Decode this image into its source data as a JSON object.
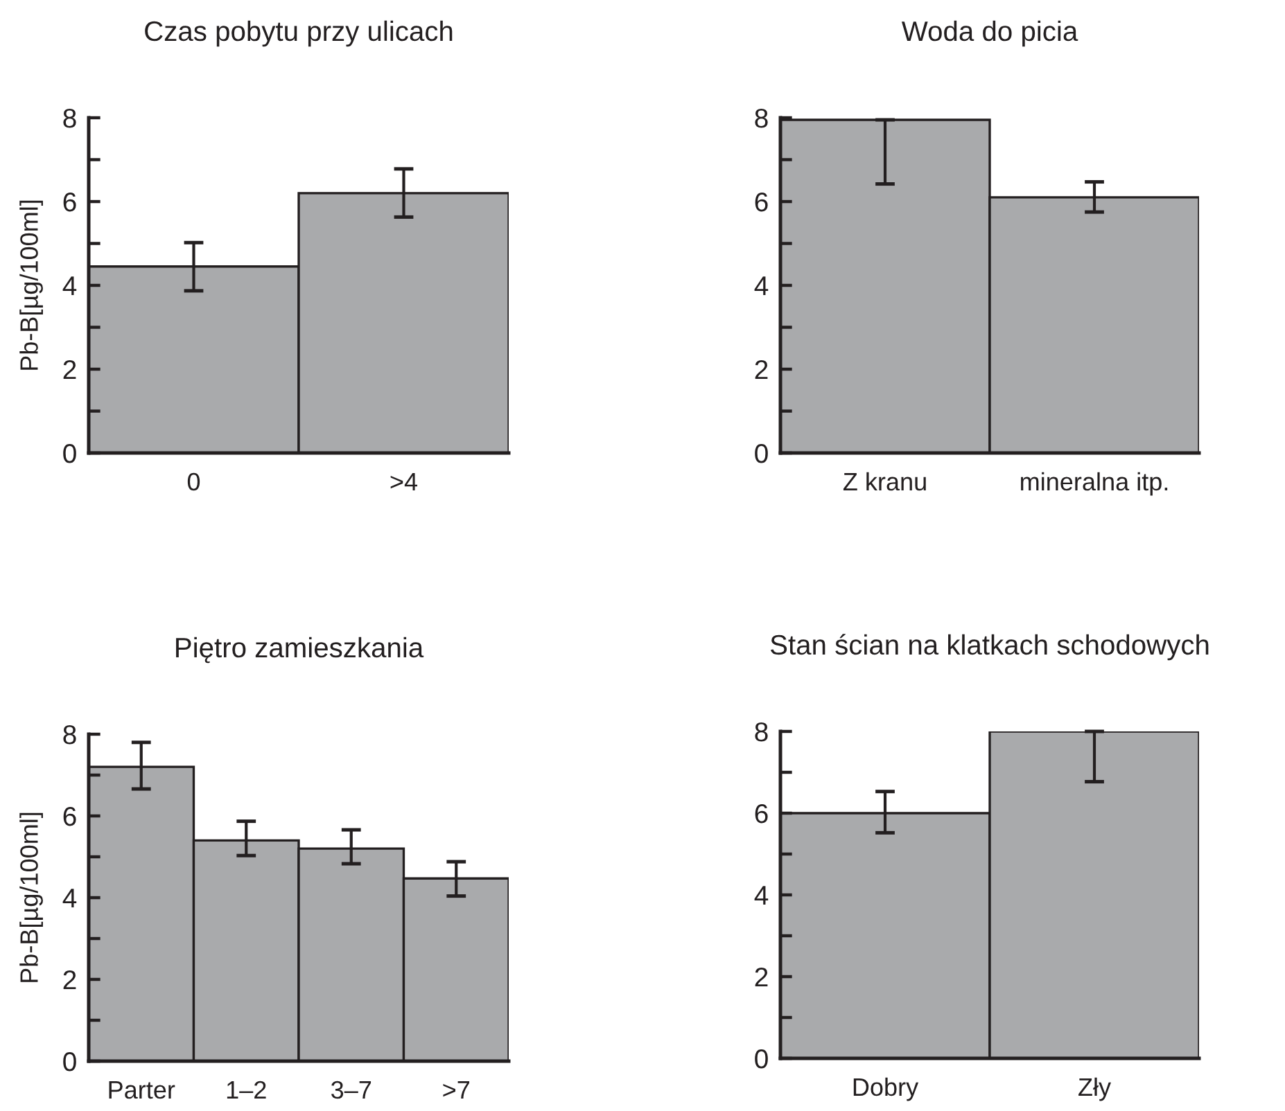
{
  "chart_data": [
    {
      "type": "bar",
      "title": "Czas pobytu przy ulicach",
      "ylabel": "Pb-B[µg/100ml]",
      "categories": [
        "0",
        ">4"
      ],
      "values": [
        4.45,
        6.2
      ],
      "errors": [
        [
          3.87,
          5.02
        ],
        [
          5.63,
          6.78
        ]
      ],
      "color": "#a9aaac",
      "ylim": [
        0,
        8
      ],
      "yticks": [
        0,
        {
          "value": 1,
          "label": null
        },
        2,
        {
          "value": 3,
          "label": null
        },
        4,
        {
          "value": 5,
          "label": null
        },
        6,
        {
          "value": 7,
          "label": null
        },
        8
      ]
    },
    {
      "type": "bar",
      "title": "Woda do picia",
      "categories": [
        "Z kranu",
        "mineralna itp."
      ],
      "values": [
        7.95,
        6.1
      ],
      "errors": [
        [
          6.42,
          7.95
        ],
        [
          5.75,
          6.47
        ]
      ],
      "color": "#a9aaac",
      "ylim": [
        0,
        8
      ],
      "yticks": [
        0,
        {
          "value": 1,
          "label": null
        },
        2,
        {
          "value": 3,
          "label": null
        },
        4,
        {
          "value": 5,
          "label": null
        },
        6,
        {
          "value": 7,
          "label": null
        },
        8
      ]
    },
    {
      "type": "bar",
      "title": "Piętro zamieszkania",
      "ylabel": "Pb-B[µg/100ml]",
      "categories": [
        "Parter",
        "1–2",
        "3–7",
        ">7"
      ],
      "values": [
        7.2,
        5.4,
        5.2,
        4.47
      ],
      "errors": [
        [
          6.66,
          7.8
        ],
        [
          5.03,
          5.87
        ],
        [
          4.83,
          5.66
        ],
        [
          4.04,
          4.88
        ]
      ],
      "color": "#a9aaac",
      "ylim": [
        0,
        8
      ],
      "yticks": [
        0,
        {
          "value": 1,
          "label": null
        },
        2,
        {
          "value": 3,
          "label": null
        },
        4,
        {
          "value": 5,
          "label": null
        },
        6,
        {
          "value": 7,
          "label": null
        },
        8
      ]
    },
    {
      "type": "bar",
      "title": "Stan ścian na klatkach schodowych",
      "categories": [
        "Dobry",
        "Zły"
      ],
      "values": [
        6.0,
        8.0
      ],
      "errors": [
        [
          5.52,
          6.53
        ],
        [
          6.77,
          8.0
        ]
      ],
      "color": "#a9aaac",
      "ylim": [
        0,
        8
      ],
      "yticks": [
        0,
        {
          "value": 1,
          "label": null
        },
        2,
        {
          "value": 3,
          "label": null
        },
        4,
        {
          "value": 5,
          "label": null
        },
        6,
        {
          "value": 7,
          "label": null
        },
        8
      ]
    }
  ]
}
